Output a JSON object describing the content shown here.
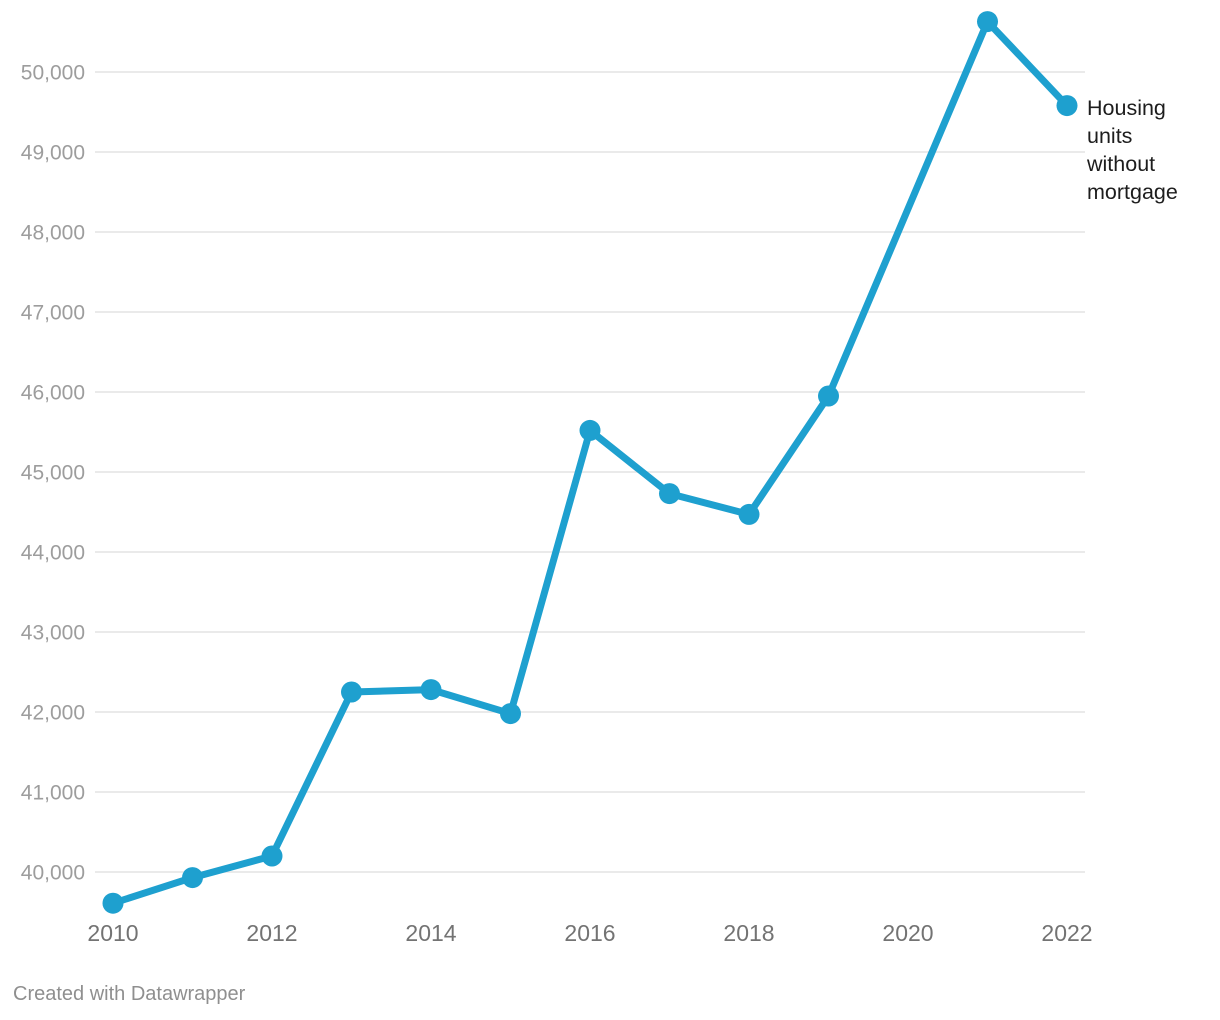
{
  "chart_data": {
    "type": "line",
    "title": "",
    "series": [
      {
        "name": "Housing units without mortgage",
        "label": "Housing units without mortgage",
        "color": "#1ea0cf",
        "points": [
          {
            "year": 2010,
            "value": 39610
          },
          {
            "year": 2011,
            "value": 39930
          },
          {
            "year": 2012,
            "value": 40200
          },
          {
            "year": 2013,
            "value": 42250
          },
          {
            "year": 2014,
            "value": 42280
          },
          {
            "year": 2015,
            "value": 41980
          },
          {
            "year": 2016,
            "value": 45520
          },
          {
            "year": 2017,
            "value": 44730
          },
          {
            "year": 2018,
            "value": 44470
          },
          {
            "year": 2019,
            "value": 45950
          },
          {
            "year": 2021,
            "value": 50630
          },
          {
            "year": 2022,
            "value": 49580
          }
        ],
        "missing_years": [
          2020
        ]
      }
    ],
    "xlabel": "",
    "ylabel": "",
    "x_ticks": [
      2010,
      2012,
      2014,
      2016,
      2018,
      2020,
      2022
    ],
    "y_ticks": [
      {
        "value": 40000,
        "label": "40,000"
      },
      {
        "value": 41000,
        "label": "41,000"
      },
      {
        "value": 42000,
        "label": "42,000"
      },
      {
        "value": 43000,
        "label": "43,000"
      },
      {
        "value": 44000,
        "label": "44,000"
      },
      {
        "value": 45000,
        "label": "45,000"
      },
      {
        "value": 46000,
        "label": "46,000"
      },
      {
        "value": 47000,
        "label": "47,000"
      },
      {
        "value": 48000,
        "label": "48,000"
      },
      {
        "value": 49000,
        "label": "49,000"
      },
      {
        "value": 50000,
        "label": "50,000"
      }
    ],
    "x_range": [
      2010,
      2022
    ],
    "y_axis_anchor": {
      "value_bottom": 40000,
      "value_top": 50000
    },
    "grid": "horizontal-only",
    "legend_position": "right-of-last-point",
    "colors": {
      "line": "#1ea0cf",
      "gridline": "#e4e4e4",
      "y_tick_text": "#9d9d9d",
      "x_tick_text": "#737373",
      "annotation_text": "#1d1d1d",
      "footer_text": "#8f8f8f"
    }
  },
  "footer": {
    "attribution": "Created with Datawrapper"
  }
}
